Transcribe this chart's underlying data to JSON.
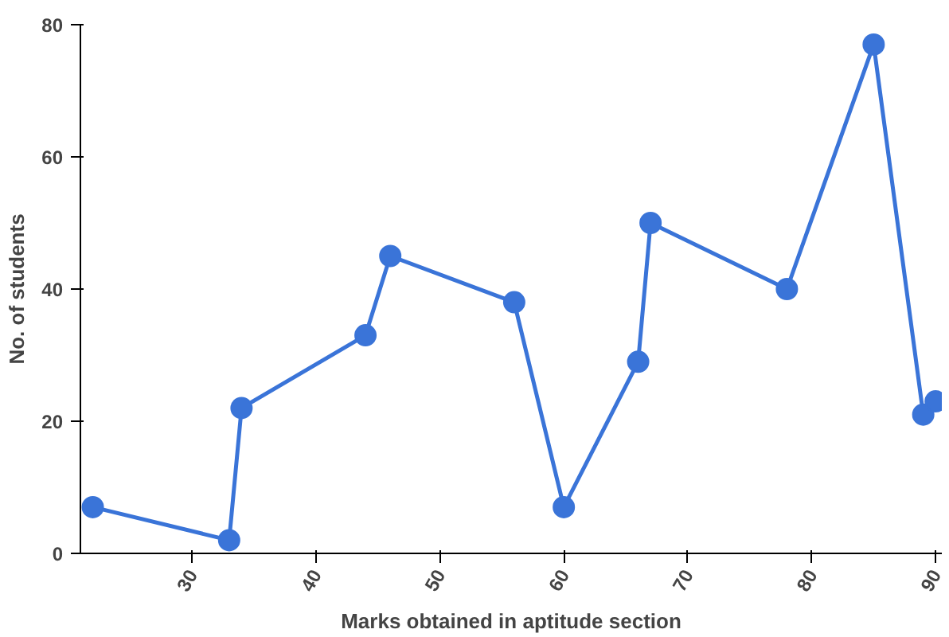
{
  "chart_data": {
    "type": "line",
    "xlabel": "Marks obtained in aptitude section",
    "ylabel": "No. of students",
    "x": [
      22,
      33,
      34,
      44,
      46,
      56,
      60,
      66,
      67,
      78,
      85,
      89,
      90
    ],
    "series": [
      {
        "color": "#3a74d8",
        "values": [
          7,
          2,
          22,
          33,
          45,
          38,
          7,
          29,
          50,
          40,
          77,
          21,
          23
        ]
      }
    ],
    "xlim": [
      21,
      90.5
    ],
    "xticks": [
      30,
      40,
      50,
      60,
      70,
      80,
      90
    ],
    "ylim": [
      0,
      80
    ],
    "yticks": [
      0,
      20,
      40,
      60,
      80
    ],
    "grid": false,
    "marker": "circle",
    "line_style": "solid"
  }
}
